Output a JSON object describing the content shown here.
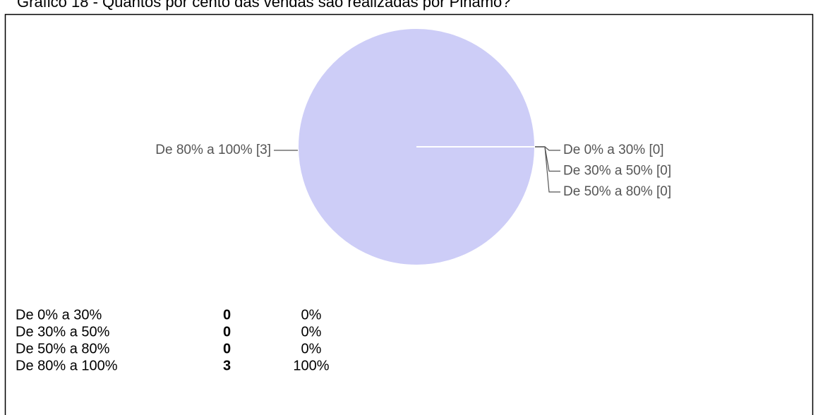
{
  "chart_data": {
    "type": "pie",
    "title": "Gráfico 18 - Quantos por cento das vendas são realizadas por Pinamo?",
    "categories": [
      "De 0% a 30%",
      "De 30% a 50%",
      "De 50% a 80%",
      "De 80% a 100%"
    ],
    "values": [
      0,
      0,
      0,
      3
    ],
    "slice_labels": [
      "De 0% a 30% [0]",
      "De 30% a 50% [0]",
      "De 50% a 80% [0]",
      "De 80% a 100% [3]"
    ],
    "shares": [
      0,
      0,
      0,
      100
    ],
    "share_labels": [
      "0%",
      "0%",
      "0%",
      "100%"
    ],
    "color": "#cdcdf7"
  }
}
